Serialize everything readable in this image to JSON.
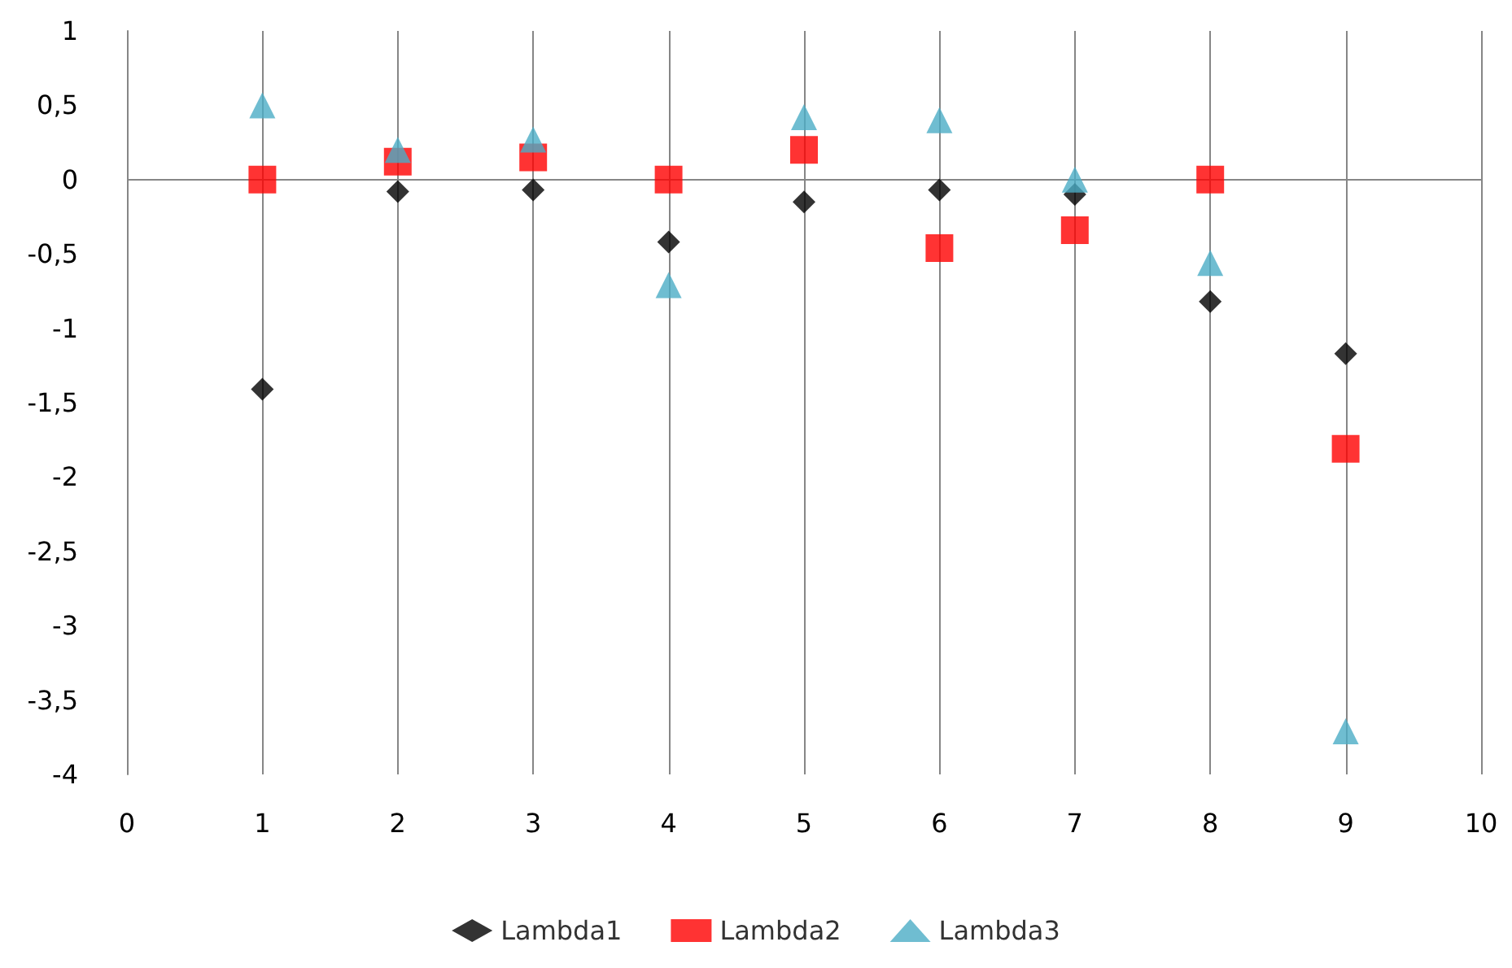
{
  "chart_data": {
    "type": "scatter",
    "xlim": [
      0,
      10
    ],
    "xticks": [
      0,
      1,
      2,
      3,
      4,
      5,
      6,
      7,
      8,
      9,
      10
    ],
    "ylim": [
      -4,
      1
    ],
    "yticks": [
      {
        "value": -4,
        "label": "-4"
      },
      {
        "value": -3.5,
        "label": "-3,5"
      },
      {
        "value": -3,
        "label": "-3"
      },
      {
        "value": -2.5,
        "label": "-2,5"
      },
      {
        "value": -2,
        "label": "-2"
      },
      {
        "value": -1.5,
        "label": "-1,5"
      },
      {
        "value": -1,
        "label": "-1"
      },
      {
        "value": -0.5,
        "label": "-0,5"
      },
      {
        "value": 0,
        "label": "0"
      },
      {
        "value": 0.5,
        "label": "0,5"
      },
      {
        "value": 1,
        "label": "1"
      }
    ],
    "grid": "x",
    "legend": "bottom",
    "ref_lines": [
      {
        "axis": "y",
        "value": 0,
        "color": "#868686"
      }
    ],
    "x": [
      1,
      2,
      3,
      4,
      5,
      6,
      7,
      8,
      9
    ],
    "series": [
      {
        "name": "Lambda1",
        "color": "#000000",
        "marker": "diamond",
        "values": [
          -1.41,
          -0.08,
          -0.07,
          -0.42,
          -0.15,
          -0.07,
          -0.1,
          -0.82,
          -1.17
        ]
      },
      {
        "name": "Lambda2",
        "color": "#ff0000",
        "marker": "square",
        "values": [
          0,
          0.12,
          0.15,
          0,
          0.2,
          -0.46,
          -0.34,
          0,
          -1.81
        ]
      },
      {
        "name": "Lambda3",
        "color": "#4bacc6",
        "marker": "triangle",
        "values": [
          0.5,
          0.2,
          0.27,
          -0.71,
          0.42,
          0.4,
          0,
          -0.56,
          -3.71
        ]
      }
    ]
  }
}
